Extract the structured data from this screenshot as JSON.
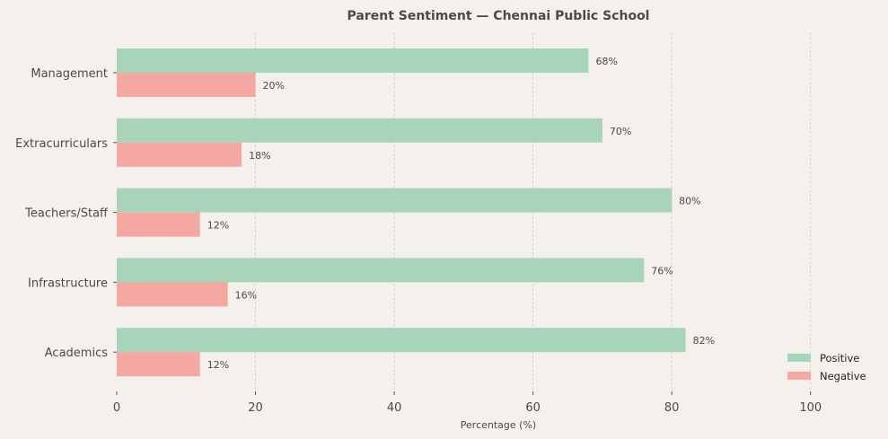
{
  "chart_data": {
    "type": "bar",
    "orientation": "horizontal",
    "title": "Parent Sentiment — Chennai Public School",
    "xlabel": "Percentage (%)",
    "ylabel": "",
    "categories": [
      "Management",
      "Extracurriculars",
      "Teachers/Staff",
      "Infrastructure",
      "Academics"
    ],
    "series": [
      {
        "name": "Positive",
        "values": [
          68,
          70,
          80,
          76,
          82
        ],
        "color": "#a8d5b9"
      },
      {
        "name": "Negative",
        "values": [
          20,
          18,
          12,
          16,
          12
        ],
        "color": "#f5a7a2"
      }
    ],
    "value_label_suffix": "%",
    "xlim": [
      0,
      110
    ],
    "xticks": [
      0,
      20,
      40,
      60,
      80,
      100
    ],
    "grid": "x dashed",
    "legend": "bottom-right",
    "background": "#f4f0ec"
  }
}
